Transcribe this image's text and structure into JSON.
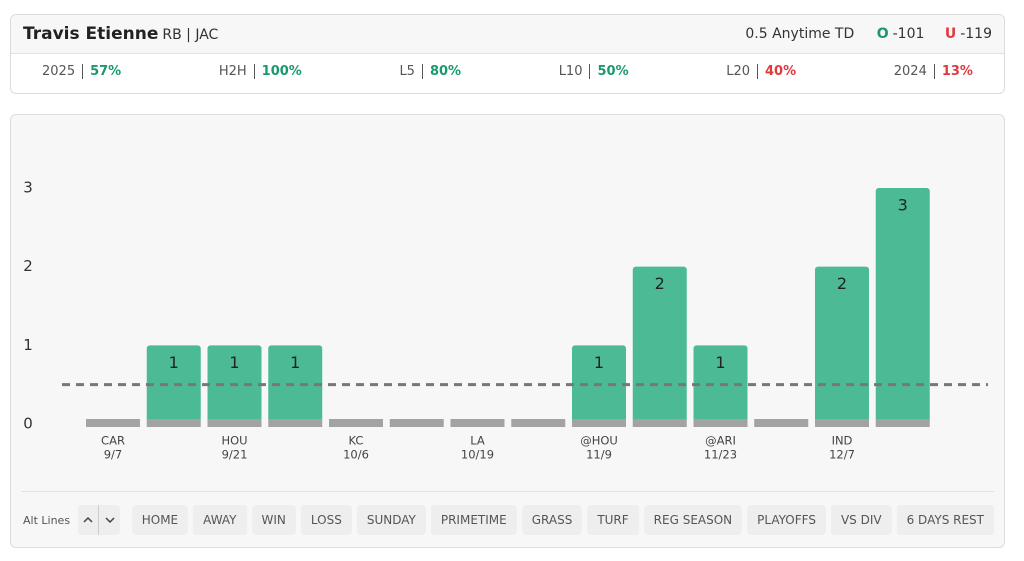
{
  "header": {
    "player": "Travis Etienne",
    "position_team": "RB | JAC",
    "line": "0.5 Anytime TD",
    "over_label": "O",
    "over_odds": "-101",
    "under_label": "U",
    "under_odds": "-119"
  },
  "hit_rates": [
    {
      "label": "2025",
      "value": "57%",
      "color": "#1a9a6c"
    },
    {
      "label": "H2H",
      "value": "100%",
      "color": "#1a9a6c"
    },
    {
      "label": "L5",
      "value": "80%",
      "color": "#1a9a6c"
    },
    {
      "label": "L10",
      "value": "50%",
      "color": "#1a9a6c"
    },
    {
      "label": "L20",
      "value": "40%",
      "color": "#e0393e"
    },
    {
      "label": "2024",
      "value": "13%",
      "color": "#e0393e"
    }
  ],
  "chart_data": {
    "type": "bar",
    "categories": [
      "CAR",
      null,
      "HOU",
      null,
      "KC",
      null,
      "LA",
      null,
      "@HOU",
      null,
      "@ARI",
      null,
      "IND",
      null
    ],
    "dates": [
      "9/7",
      null,
      "9/21",
      null,
      "10/6",
      null,
      "10/19",
      null,
      "11/9",
      null,
      "11/23",
      null,
      "12/7",
      null
    ],
    "values": [
      0,
      1,
      1,
      1,
      0,
      0,
      0,
      0,
      1,
      2,
      1,
      0,
      2,
      3
    ],
    "color": "#4cbb95",
    "base_color": "#a3a3a3",
    "threshold": 0.5,
    "ylim": [
      0,
      3
    ],
    "yticks": [
      0,
      1,
      2,
      3
    ],
    "grid": false
  },
  "filters": {
    "alt_lines": "Alt Lines",
    "buttons": [
      "HOME",
      "AWAY",
      "WIN",
      "LOSS",
      "SUNDAY",
      "PRIMETIME",
      "GRASS",
      "TURF",
      "REG SEASON",
      "PLAYOFFS",
      "VS DIV",
      "6 DAYS REST"
    ]
  }
}
